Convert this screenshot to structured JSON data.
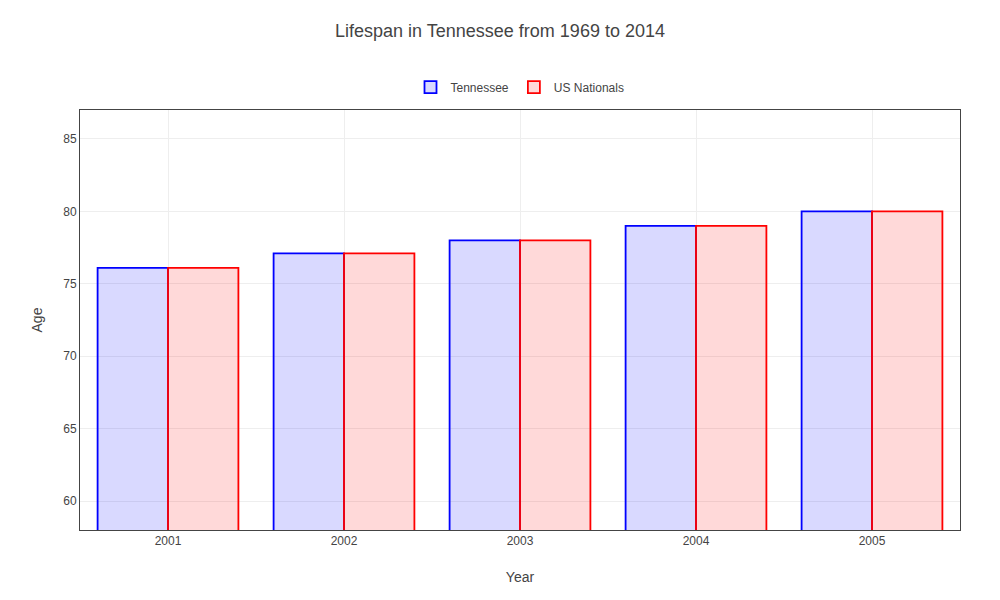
{
  "chart_data": {
    "type": "bar",
    "title": "Lifespan in Tennessee from 1969 to 2014",
    "xlabel": "Year",
    "ylabel": "Age",
    "categories": [
      "2001",
      "2002",
      "2003",
      "2004",
      "2005"
    ],
    "series": [
      {
        "name": "Tennessee",
        "color": "#0000ff",
        "values": [
          76.1,
          77.1,
          78.0,
          79.0,
          80.0
        ]
      },
      {
        "name": "US Nationals",
        "color": "#ff0000",
        "values": [
          76.1,
          77.1,
          78.0,
          79.0,
          80.0
        ]
      }
    ],
    "ylim": [
      58,
      87
    ],
    "yticks": [
      60,
      65,
      70,
      75,
      80,
      85
    ],
    "grid": true,
    "legend": "top"
  }
}
